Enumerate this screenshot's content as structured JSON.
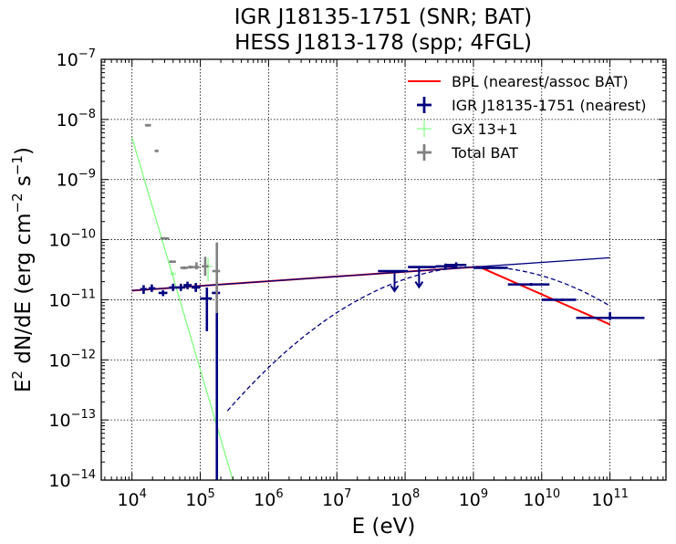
{
  "chart_data": {
    "type": "scatter",
    "title_line1": "IGR J18135-1751 (SNR; BAT)",
    "title_line2": "HESS J1813-178 (spp; 4FGL)",
    "xlabel": "E (eV)",
    "ylabel_main": "E",
    "ylabel_sup1": "2",
    "ylabel_mid": " dN/dE (erg cm",
    "ylabel_sup2": "−2",
    "ylabel_mid2": " s",
    "ylabel_sup3": "−1",
    "ylabel_end": ")",
    "x_log": true,
    "y_log": true,
    "xlim_log10": [
      3.55,
      11.82
    ],
    "ylim_log10": [
      -14,
      -7
    ],
    "grid": true,
    "legend_position": "top-right",
    "x_ticks": [
      {
        "base": "10",
        "exp": "4",
        "log": 4
      },
      {
        "base": "10",
        "exp": "5",
        "log": 5
      },
      {
        "base": "10",
        "exp": "6",
        "log": 6
      },
      {
        "base": "10",
        "exp": "7",
        "log": 7
      },
      {
        "base": "10",
        "exp": "8",
        "log": 8
      },
      {
        "base": "10",
        "exp": "9",
        "log": 9
      },
      {
        "base": "10",
        "exp": "10",
        "log": 10
      },
      {
        "base": "10",
        "exp": "11",
        "log": 11
      }
    ],
    "y_ticks": [
      {
        "base": "10",
        "exp": "−14",
        "log": -14
      },
      {
        "base": "10",
        "exp": "−13",
        "log": -13
      },
      {
        "base": "10",
        "exp": "−12",
        "log": -12
      },
      {
        "base": "10",
        "exp": "−11",
        "log": -11
      },
      {
        "base": "10",
        "exp": "−10",
        "log": -10
      },
      {
        "base": "10",
        "exp": "−9",
        "log": -9
      },
      {
        "base": "10",
        "exp": "−8",
        "log": -8
      },
      {
        "base": "10",
        "exp": "−7",
        "log": -7
      }
    ],
    "legend": [
      {
        "label": "BPL (nearest/assoc BAT)",
        "color": "#ff0000",
        "marker": "line"
      },
      {
        "label": "IGR J18135-1751 (nearest)",
        "color": "#00007f",
        "marker": "errorbar-thick"
      },
      {
        "label": "GX 13+1",
        "color": "#7fff7f",
        "marker": "errorbar-thin"
      },
      {
        "label": "Total BAT",
        "color": "#808080",
        "marker": "errorbar-thick"
      }
    ],
    "series": [
      {
        "name": "IGR J18135-1751 (nearest)",
        "color": "#00007f",
        "points": [
          {
            "x": 14800,
            "xlo": 13200,
            "xhi": 16600,
            "y": 1.5e-11,
            "ylo": 1.25e-11,
            "yhi": 1.75e-11
          },
          {
            "x": 19500,
            "xlo": 17500,
            "xhi": 22000,
            "y": 1.55e-11,
            "ylo": 1.35e-11,
            "yhi": 1.8e-11
          },
          {
            "x": 28500,
            "xlo": 24500,
            "xhi": 33000,
            "y": 1.3e-11,
            "ylo": 1.15e-11,
            "yhi": 1.45e-11
          },
          {
            "x": 40000,
            "xlo": 35000,
            "xhi": 46000,
            "y": 1.6e-11,
            "ylo": 1.4e-11,
            "yhi": 1.85e-11
          },
          {
            "x": 52000,
            "xlo": 46000,
            "xhi": 60000,
            "y": 1.6e-11,
            "ylo": 1.4e-11,
            "yhi": 1.85e-11
          },
          {
            "x": 65000,
            "xlo": 57000,
            "xhi": 75000,
            "y": 1.75e-11,
            "ylo": 1.5e-11,
            "yhi": 2e-11
          },
          {
            "x": 86000,
            "xlo": 75000,
            "xhi": 100000,
            "y": 1.6e-11,
            "ylo": 1.35e-11,
            "yhi": 1.9e-11
          },
          {
            "x": 125000,
            "xlo": 100000,
            "xhi": 148000,
            "y": 1.05e-11,
            "ylo": 3e-12,
            "yhi": 1.6e-11
          },
          {
            "x": 175000,
            "xlo": 148000,
            "xhi": 195000,
            "y": 1.3e-11,
            "ylo": 1e-14,
            "yhi": 2e-11
          },
          {
            "x": 70000000.0,
            "xlo": 40000000.0,
            "xhi": 110000000.0,
            "y": 3e-11,
            "uplim": true
          },
          {
            "x": 160000000.0,
            "xlo": 110000000.0,
            "xhi": 280000000.0,
            "y": 3.5e-11,
            "uplim": true
          },
          {
            "x": 390000000.0,
            "xlo": 280000000.0,
            "xhi": 560000000.0,
            "y": 3.6e-11,
            "ylo": 3.2e-11,
            "yhi": 4e-11
          },
          {
            "x": 560000000.0,
            "xlo": 390000000.0,
            "xhi": 790000000.0,
            "y": 3.8e-11,
            "ylo": 3.4e-11,
            "yhi": 4.2e-11
          },
          {
            "x": 1600000000.0,
            "xlo": 1000000000.0,
            "xhi": 3200000000.0,
            "y": 3.4e-11,
            "ylo": 3.2e-11,
            "yhi": 3.6e-11
          },
          {
            "x": 7000000000.0,
            "xlo": 3200000000.0,
            "xhi": 13000000000.0,
            "y": 1.8e-11,
            "ylo": 1.7e-11,
            "yhi": 1.9e-11
          },
          {
            "x": 20000000000.0,
            "xlo": 10000000000.0,
            "xhi": 32000000000.0,
            "y": 1e-11,
            "ylo": 9.5e-12,
            "yhi": 1.05e-11
          },
          {
            "x": 100000000000.0,
            "xlo": 32000000000.0,
            "xhi": 320000000000.0,
            "y": 5e-12,
            "ylo": 4.6e-12,
            "yhi": 6.2e-12
          }
        ]
      },
      {
        "name": "GX 13+1",
        "color": "#7fff7f",
        "points": [
          {
            "x": 40000,
            "xlo": 36000,
            "xhi": 44000,
            "y": 2.7e-11,
            "ylo": 2.5e-11,
            "yhi": 2.9e-11
          },
          {
            "x": 130000,
            "xlo": 110000,
            "xhi": 150000,
            "y": 3.6e-11,
            "ylo": 2e-11,
            "yhi": 5e-11
          }
        ]
      },
      {
        "name": "Total BAT",
        "color": "#808080",
        "points": [
          {
            "x": 17000,
            "xlo": 15500,
            "xhi": 19000,
            "y": 8e-09,
            "ylo": 7.6e-09,
            "yhi": 8.4e-09
          },
          {
            "x": 23000,
            "xlo": 21500,
            "xhi": 24500,
            "y": 3e-09,
            "ylo": 2.85e-09,
            "yhi": 3.15e-09
          },
          {
            "x": 30000,
            "xlo": 26000,
            "xhi": 35000,
            "y": 1.05e-10,
            "ylo": 1e-10,
            "yhi": 1.1e-10
          },
          {
            "x": 39000,
            "xlo": 35000,
            "xhi": 44000,
            "y": 4.3e-11,
            "ylo": 4.1e-11,
            "yhi": 4.5e-11
          },
          {
            "x": 58000,
            "xlo": 51000,
            "xhi": 66000,
            "y": 3.4e-11,
            "ylo": 3.2e-11,
            "yhi": 3.6e-11
          },
          {
            "x": 72000,
            "xlo": 66000,
            "xhi": 80000,
            "y": 3.5e-11,
            "ylo": 3.3e-11,
            "yhi": 3.7e-11
          },
          {
            "x": 88000,
            "xlo": 80000,
            "xhi": 97000,
            "y": 3.5e-11,
            "ylo": 3.2e-11,
            "yhi": 4.2e-11
          },
          {
            "x": 118000,
            "xlo": 105000,
            "xhi": 132000,
            "y": 3.6e-11,
            "ylo": 2.5e-11,
            "yhi": 5.2e-11
          },
          {
            "x": 175000,
            "xlo": 150000,
            "xhi": 195000,
            "y": 3e-11,
            "ylo": 6e-12,
            "yhi": 9e-11
          }
        ]
      }
    ],
    "lines": [
      {
        "name": "BPL (nearest/assoc BAT)",
        "color": "#ff0000",
        "width": 2,
        "dash": "none",
        "points": [
          [
            10000,
            1.42e-11
          ],
          [
            1200000000.0,
            3.55e-11
          ],
          [
            100000000000.0,
            3.9e-12
          ]
        ]
      },
      {
        "name": "blue-thin-powerlaw",
        "color": "#00007f",
        "width": 1.3,
        "dash": "none",
        "points": [
          [
            10000,
            1.42e-11
          ],
          [
            1200000000.0,
            3.55e-11
          ],
          [
            100000000000.0,
            5e-11
          ]
        ]
      },
      {
        "name": "green-powerlaw",
        "color": "#7fff7f",
        "width": 1.3,
        "dash": "none",
        "points": [
          [
            10000,
            5e-09
          ],
          [
            300000,
            1e-14
          ]
        ]
      },
      {
        "name": "blue-dashed-logparabola",
        "color": "#00007f",
        "width": 1.3,
        "dash": "5,3",
        "logparabola": {
          "xpeak": 1200000000.0,
          "ypeak": 3.55e-11,
          "beta": 0.177,
          "xmin": 250000,
          "xmax": 100000000000.0
        }
      }
    ]
  }
}
